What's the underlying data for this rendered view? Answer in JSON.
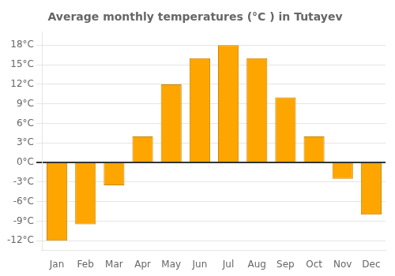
{
  "chart_data": {
    "type": "bar",
    "title": "Average monthly temperatures (°C ) in Tutayev",
    "categories": [
      "Jan",
      "Feb",
      "Mar",
      "Apr",
      "May",
      "Jun",
      "Jul",
      "Aug",
      "Sep",
      "Oct",
      "Nov",
      "Dec"
    ],
    "values": [
      -12,
      -9.5,
      -3.5,
      4,
      12,
      16,
      18,
      16,
      10,
      4,
      -2.5,
      -8
    ],
    "color": "#FFA500",
    "ylim": [
      -13.5,
      20
    ],
    "yticks": [
      {
        "value": -12,
        "label": "-12°C"
      },
      {
        "value": -9,
        "label": "-9°C"
      },
      {
        "value": -6,
        "label": "-6°C"
      },
      {
        "value": -3,
        "label": "-3°C"
      },
      {
        "value": 0,
        "label": "0°C"
      },
      {
        "value": 3,
        "label": "3°C"
      },
      {
        "value": 6,
        "label": "6°C"
      },
      {
        "value": 9,
        "label": "9°C"
      },
      {
        "value": 12,
        "label": "12°C"
      },
      {
        "value": 15,
        "label": "15°C"
      },
      {
        "value": 18,
        "label": "18°C"
      }
    ],
    "grid": true
  }
}
